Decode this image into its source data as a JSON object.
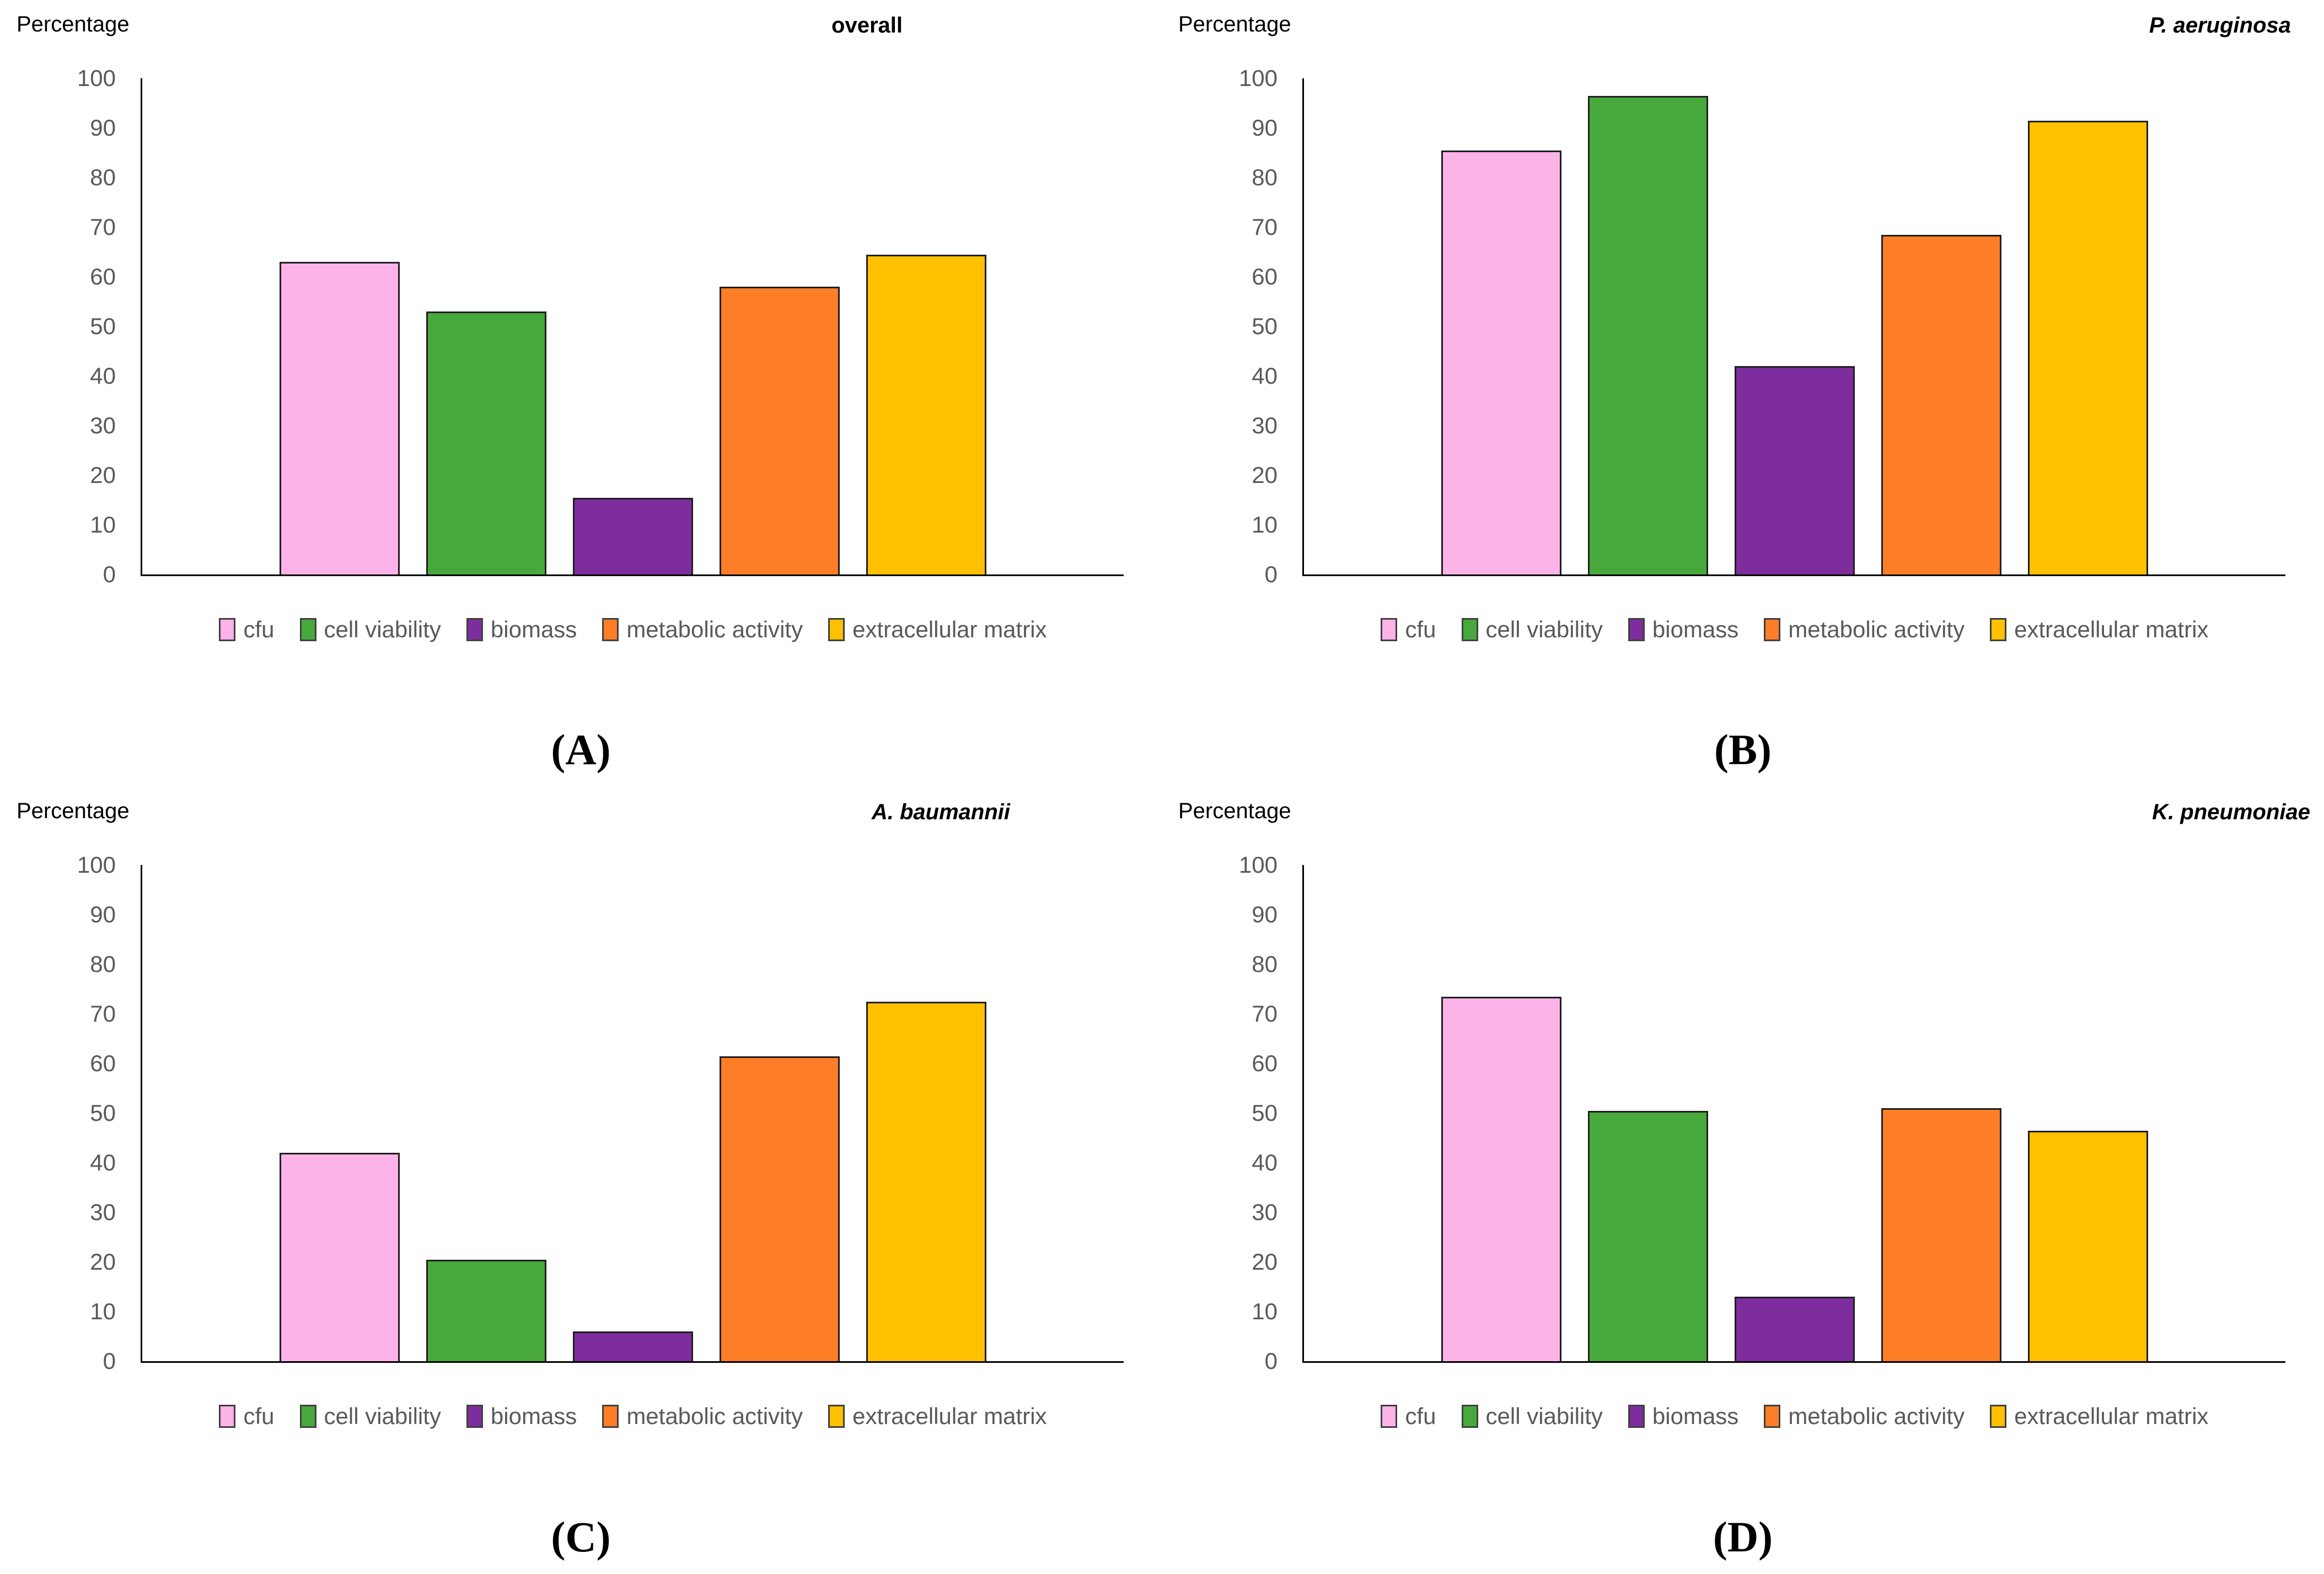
{
  "figure": {
    "y_axis_label": "Percentage",
    "series_colors": {
      "cfu": "#FCB3E7",
      "cell_viability": "#47A83C",
      "biomass": "#7D2D9E",
      "metabolic_activity": "#FD7E27",
      "extracellular_matrix": "#FFC000"
    },
    "axis_text_color": "#595959",
    "legend": [
      {
        "label": "cfu",
        "color": "#FCB3E7"
      },
      {
        "label": "cell viability",
        "color": "#47A83C"
      },
      {
        "label": "biomass",
        "color": "#7D2D9E"
      },
      {
        "label": "metabolic activity",
        "color": "#FD7E27"
      },
      {
        "label": "extracellular matrix",
        "color": "#FFC000"
      }
    ]
  },
  "chart_data": [
    {
      "type": "bar",
      "panel_letter": "(A)",
      "title": "overall",
      "title_italic": false,
      "ylabel": "Percentage",
      "xlabel": "",
      "ylim": [
        0,
        100
      ],
      "grid": false,
      "legend_position": "bottom",
      "y_ticks": [
        0,
        10,
        20,
        30,
        40,
        50,
        60,
        70,
        80,
        90,
        100
      ],
      "categories": [
        "cfu",
        "cell viability",
        "biomass",
        "metabolic activity",
        "extracellular matrix"
      ],
      "values": [
        63,
        53,
        15.5,
        58,
        64.5
      ]
    },
    {
      "type": "bar",
      "panel_letter": "(B)",
      "title": "P. aeruginosa",
      "title_italic": true,
      "ylabel": "Percentage",
      "xlabel": "",
      "ylim": [
        0,
        100
      ],
      "grid": false,
      "legend_position": "bottom",
      "y_ticks": [
        0,
        10,
        20,
        30,
        40,
        50,
        60,
        70,
        80,
        90,
        100
      ],
      "categories": [
        "cfu",
        "cell viability",
        "biomass",
        "metabolic activity",
        "extracellular matrix"
      ],
      "values": [
        85.5,
        96.5,
        42,
        68.5,
        91.5
      ]
    },
    {
      "type": "bar",
      "panel_letter": "(C)",
      "title": "A. baumannii",
      "title_italic": true,
      "ylabel": "Percentage",
      "xlabel": "",
      "ylim": [
        0,
        100
      ],
      "grid": false,
      "legend_position": "bottom",
      "y_ticks": [
        0,
        10,
        20,
        30,
        40,
        50,
        60,
        70,
        80,
        90,
        100
      ],
      "categories": [
        "cfu",
        "cell viability",
        "biomass",
        "metabolic activity",
        "extracellular matrix"
      ],
      "values": [
        42,
        20.5,
        6,
        61.5,
        72.5
      ]
    },
    {
      "type": "bar",
      "panel_letter": "(D)",
      "title": "K. pneumoniae",
      "title_italic": true,
      "ylabel": "Percentage",
      "xlabel": "",
      "ylim": [
        0,
        100
      ],
      "grid": false,
      "legend_position": "bottom",
      "y_ticks": [
        0,
        10,
        20,
        30,
        40,
        50,
        60,
        70,
        80,
        90,
        100
      ],
      "categories": [
        "cfu",
        "cell viability",
        "biomass",
        "metabolic activity",
        "extracellular matrix"
      ],
      "values": [
        73.5,
        50.5,
        13,
        51,
        46.5
      ]
    }
  ]
}
